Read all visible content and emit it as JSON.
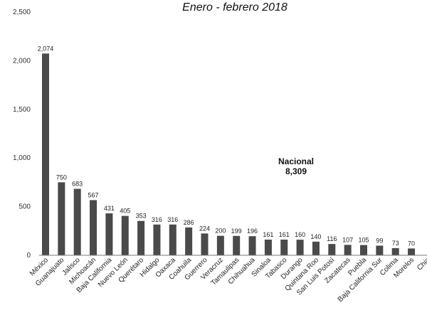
{
  "chart_data": {
    "type": "bar",
    "subtitle": "Enero - febrero 2018",
    "categories": [
      "México",
      "Guanajuato",
      "Jalisco",
      "Michoacán",
      "Baja California",
      "Nuevo León",
      "Querétaro",
      "Hidalgo",
      "Oaxaca",
      "Coahuila",
      "Guerrero",
      "Veracruz",
      "Tamaulipas",
      "Chihuahua",
      "Sinaloa",
      "Tabasco",
      "Durango",
      "Quintana Roo",
      "San Luis Potosí",
      "Zacatecas",
      "Puebla",
      "Baja California Sur",
      "Colima",
      "Morelos",
      "Chia"
    ],
    "values": [
      2074,
      750,
      683,
      567,
      431,
      405,
      353,
      316,
      316,
      286,
      224,
      200,
      199,
      196,
      161,
      161,
      160,
      140,
      116,
      107,
      105,
      99,
      73,
      70,
      null
    ],
    "value_labels": [
      "2,074",
      "750",
      "683",
      "567",
      "431",
      "405",
      "353",
      "316",
      "316",
      "286",
      "224",
      "200",
      "199",
      "196",
      "161",
      "161",
      "160",
      "140",
      "116",
      "107",
      "105",
      "99",
      "73",
      "70",
      ""
    ],
    "yticks": [
      "0",
      "500",
      "1,000",
      "1,500",
      "2,000",
      "2,500"
    ],
    "ylim": [
      0,
      2500
    ],
    "annotation": {
      "label": "Nacional",
      "value": "8,309"
    },
    "bar_color": "#4a4a4a",
    "grid": false
  }
}
